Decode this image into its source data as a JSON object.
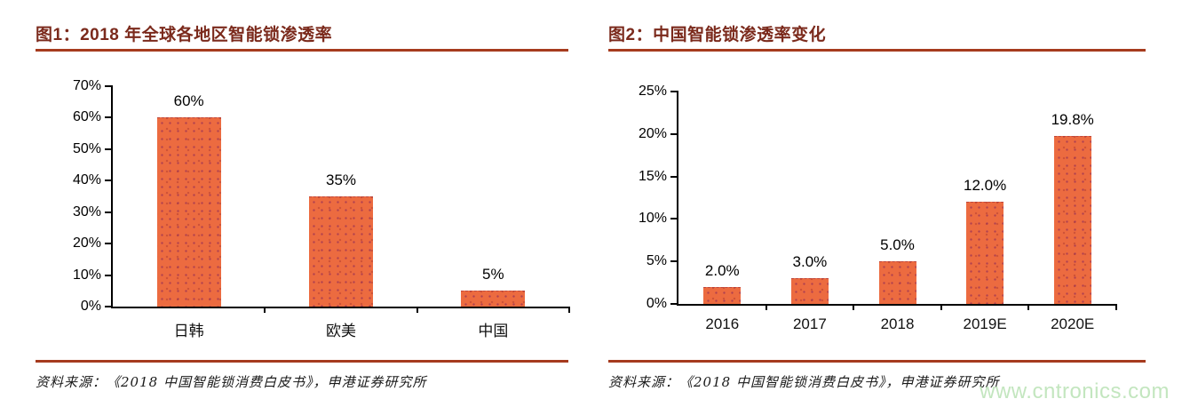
{
  "figures": [
    {
      "title": "图1：2018 年全球各地区智能锁渗透率",
      "source": "资料来源：《2018 中国智能锁消费白皮书》，申港证券研究所"
    },
    {
      "title": "图2：中国智能锁渗透率变化",
      "source": "资料来源：《2018 中国智能锁消费白皮书》，申港证券研究所"
    }
  ],
  "watermark": {
    "text": "www.cntronics.com",
    "color": "#c3e6bf"
  },
  "colors": {
    "title": "#7b2a1c",
    "rule": "#a63b1e",
    "bar": "#ec6b40",
    "axis": "#000000"
  },
  "chart_data": [
    {
      "type": "bar",
      "title": "图1：2018 年全球各地区智能锁渗透率",
      "categories": [
        "日韩",
        "欧美",
        "中国"
      ],
      "values": [
        60,
        35,
        5
      ],
      "value_labels": [
        "60%",
        "35%",
        "5%"
      ],
      "ylabel": "",
      "xlabel": "",
      "ylim": [
        0,
        70
      ],
      "yticks": [
        "0%",
        "10%",
        "20%",
        "30%",
        "40%",
        "50%",
        "60%",
        "70%"
      ],
      "grid": false,
      "legend_position": "none"
    },
    {
      "type": "bar",
      "title": "图2：中国智能锁渗透率变化",
      "categories": [
        "2016",
        "2017",
        "2018",
        "2019E",
        "2020E"
      ],
      "values": [
        2.0,
        3.0,
        5.0,
        12.0,
        19.8
      ],
      "value_labels": [
        "2.0%",
        "3.0%",
        "5.0%",
        "12.0%",
        "19.8%"
      ],
      "ylabel": "",
      "xlabel": "",
      "ylim": [
        0,
        25
      ],
      "yticks": [
        "0%",
        "5%",
        "10%",
        "15%",
        "20%",
        "25%"
      ],
      "grid": false,
      "legend_position": "none"
    }
  ]
}
